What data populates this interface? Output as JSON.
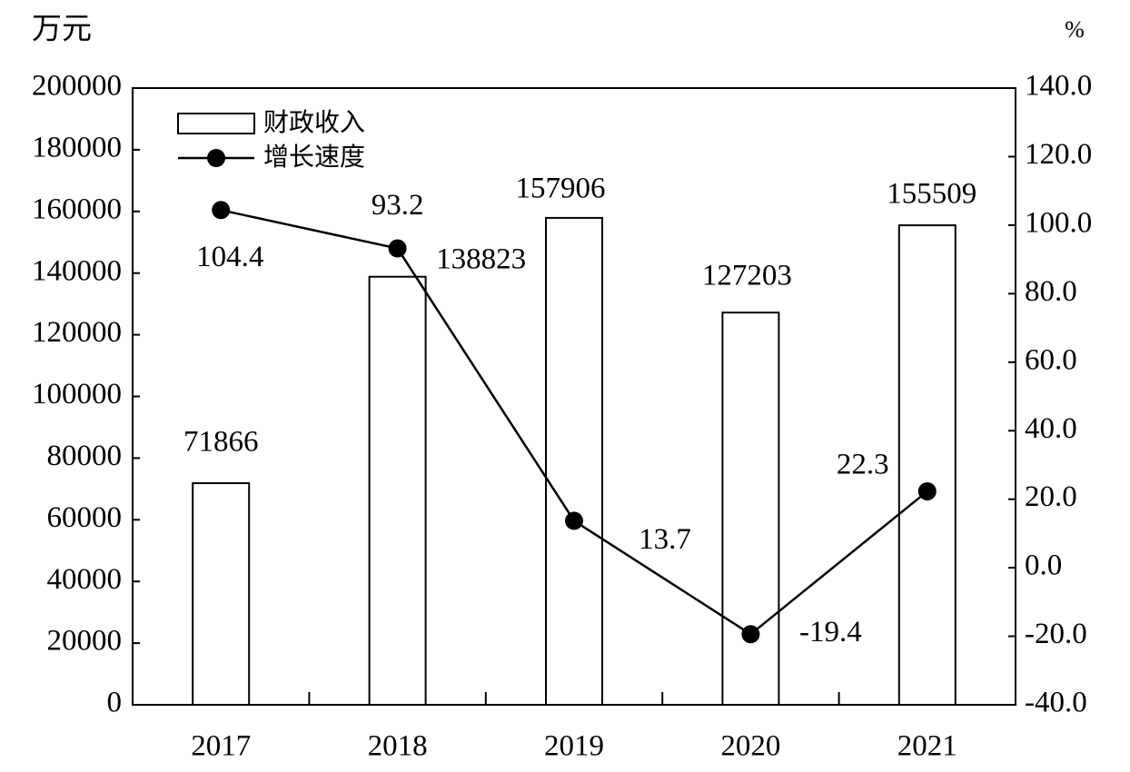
{
  "chart_data": {
    "type": "bar",
    "y_label": "万元",
    "y2_label": "%",
    "categories": [
      "2017",
      "2018",
      "2019",
      "2020",
      "2021"
    ],
    "series": [
      {
        "name": "财政收入",
        "type": "bar",
        "color": "#ffffff",
        "values": [
          71866,
          138823,
          157906,
          127203,
          155509
        ]
      },
      {
        "name": "增长速度",
        "type": "line",
        "axis": "y2",
        "color": "#000000",
        "values": [
          104.4,
          93.2,
          13.7,
          -19.4,
          22.3
        ]
      }
    ],
    "ylim": [
      0,
      200000
    ],
    "yticks": [
      0,
      20000,
      40000,
      60000,
      80000,
      100000,
      120000,
      140000,
      160000,
      180000,
      200000
    ],
    "y2lim": [
      -40,
      140
    ],
    "y2ticks": [
      {
        "value": -40,
        "label": "-40.0"
      },
      {
        "value": -20,
        "label": "-20.0"
      },
      {
        "value": 0,
        "label": "0.0"
      },
      {
        "value": 20,
        "label": "20.0"
      },
      {
        "value": 40,
        "label": "40.0"
      },
      {
        "value": 60,
        "label": "60.0"
      },
      {
        "value": 80,
        "label": "80.0"
      },
      {
        "value": 100,
        "label": "100.0"
      },
      {
        "value": 120,
        "label": "120.0"
      },
      {
        "value": 140,
        "label": "140.0"
      }
    ],
    "legend": "upper left",
    "grid": false
  }
}
